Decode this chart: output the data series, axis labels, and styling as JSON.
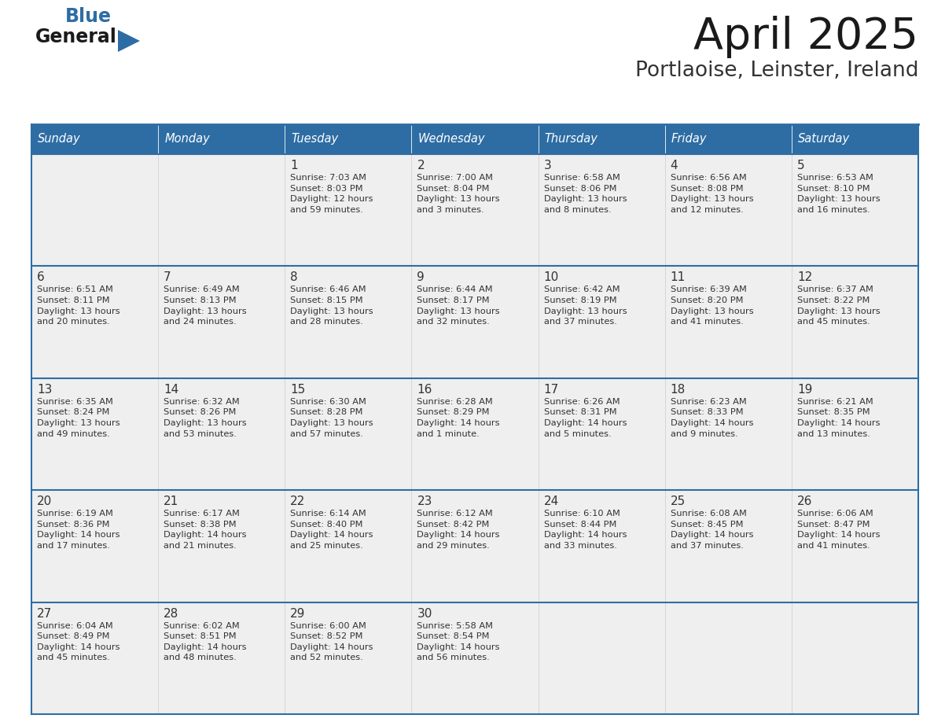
{
  "title": "April 2025",
  "subtitle": "Portlaoise, Leinster, Ireland",
  "days_of_week": [
    "Sunday",
    "Monday",
    "Tuesday",
    "Wednesday",
    "Thursday",
    "Friday",
    "Saturday"
  ],
  "header_bg": "#2E6DA4",
  "header_text_color": "#FFFFFF",
  "cell_bg": "#EFEFEF",
  "cell_bg_white": "#FFFFFF",
  "border_color": "#2E6DA4",
  "row_line_color": "#2E6DA4",
  "text_color": "#333333",
  "title_color": "#1a1a1a",
  "subtitle_color": "#333333",
  "logo_general_color": "#1a1a1a",
  "logo_blue_color": "#2E6DA4",
  "calendar_data": [
    [
      {
        "day": "",
        "info": ""
      },
      {
        "day": "",
        "info": ""
      },
      {
        "day": "1",
        "info": "Sunrise: 7:03 AM\nSunset: 8:03 PM\nDaylight: 12 hours\nand 59 minutes."
      },
      {
        "day": "2",
        "info": "Sunrise: 7:00 AM\nSunset: 8:04 PM\nDaylight: 13 hours\nand 3 minutes."
      },
      {
        "day": "3",
        "info": "Sunrise: 6:58 AM\nSunset: 8:06 PM\nDaylight: 13 hours\nand 8 minutes."
      },
      {
        "day": "4",
        "info": "Sunrise: 6:56 AM\nSunset: 8:08 PM\nDaylight: 13 hours\nand 12 minutes."
      },
      {
        "day": "5",
        "info": "Sunrise: 6:53 AM\nSunset: 8:10 PM\nDaylight: 13 hours\nand 16 minutes."
      }
    ],
    [
      {
        "day": "6",
        "info": "Sunrise: 6:51 AM\nSunset: 8:11 PM\nDaylight: 13 hours\nand 20 minutes."
      },
      {
        "day": "7",
        "info": "Sunrise: 6:49 AM\nSunset: 8:13 PM\nDaylight: 13 hours\nand 24 minutes."
      },
      {
        "day": "8",
        "info": "Sunrise: 6:46 AM\nSunset: 8:15 PM\nDaylight: 13 hours\nand 28 minutes."
      },
      {
        "day": "9",
        "info": "Sunrise: 6:44 AM\nSunset: 8:17 PM\nDaylight: 13 hours\nand 32 minutes."
      },
      {
        "day": "10",
        "info": "Sunrise: 6:42 AM\nSunset: 8:19 PM\nDaylight: 13 hours\nand 37 minutes."
      },
      {
        "day": "11",
        "info": "Sunrise: 6:39 AM\nSunset: 8:20 PM\nDaylight: 13 hours\nand 41 minutes."
      },
      {
        "day": "12",
        "info": "Sunrise: 6:37 AM\nSunset: 8:22 PM\nDaylight: 13 hours\nand 45 minutes."
      }
    ],
    [
      {
        "day": "13",
        "info": "Sunrise: 6:35 AM\nSunset: 8:24 PM\nDaylight: 13 hours\nand 49 minutes."
      },
      {
        "day": "14",
        "info": "Sunrise: 6:32 AM\nSunset: 8:26 PM\nDaylight: 13 hours\nand 53 minutes."
      },
      {
        "day": "15",
        "info": "Sunrise: 6:30 AM\nSunset: 8:28 PM\nDaylight: 13 hours\nand 57 minutes."
      },
      {
        "day": "16",
        "info": "Sunrise: 6:28 AM\nSunset: 8:29 PM\nDaylight: 14 hours\nand 1 minute."
      },
      {
        "day": "17",
        "info": "Sunrise: 6:26 AM\nSunset: 8:31 PM\nDaylight: 14 hours\nand 5 minutes."
      },
      {
        "day": "18",
        "info": "Sunrise: 6:23 AM\nSunset: 8:33 PM\nDaylight: 14 hours\nand 9 minutes."
      },
      {
        "day": "19",
        "info": "Sunrise: 6:21 AM\nSunset: 8:35 PM\nDaylight: 14 hours\nand 13 minutes."
      }
    ],
    [
      {
        "day": "20",
        "info": "Sunrise: 6:19 AM\nSunset: 8:36 PM\nDaylight: 14 hours\nand 17 minutes."
      },
      {
        "day": "21",
        "info": "Sunrise: 6:17 AM\nSunset: 8:38 PM\nDaylight: 14 hours\nand 21 minutes."
      },
      {
        "day": "22",
        "info": "Sunrise: 6:14 AM\nSunset: 8:40 PM\nDaylight: 14 hours\nand 25 minutes."
      },
      {
        "day": "23",
        "info": "Sunrise: 6:12 AM\nSunset: 8:42 PM\nDaylight: 14 hours\nand 29 minutes."
      },
      {
        "day": "24",
        "info": "Sunrise: 6:10 AM\nSunset: 8:44 PM\nDaylight: 14 hours\nand 33 minutes."
      },
      {
        "day": "25",
        "info": "Sunrise: 6:08 AM\nSunset: 8:45 PM\nDaylight: 14 hours\nand 37 minutes."
      },
      {
        "day": "26",
        "info": "Sunrise: 6:06 AM\nSunset: 8:47 PM\nDaylight: 14 hours\nand 41 minutes."
      }
    ],
    [
      {
        "day": "27",
        "info": "Sunrise: 6:04 AM\nSunset: 8:49 PM\nDaylight: 14 hours\nand 45 minutes."
      },
      {
        "day": "28",
        "info": "Sunrise: 6:02 AM\nSunset: 8:51 PM\nDaylight: 14 hours\nand 48 minutes."
      },
      {
        "day": "29",
        "info": "Sunrise: 6:00 AM\nSunset: 8:52 PM\nDaylight: 14 hours\nand 52 minutes."
      },
      {
        "day": "30",
        "info": "Sunrise: 5:58 AM\nSunset: 8:54 PM\nDaylight: 14 hours\nand 56 minutes."
      },
      {
        "day": "",
        "info": ""
      },
      {
        "day": "",
        "info": ""
      },
      {
        "day": "",
        "info": ""
      }
    ]
  ],
  "fig_width": 11.88,
  "fig_height": 9.18,
  "dpi": 100
}
